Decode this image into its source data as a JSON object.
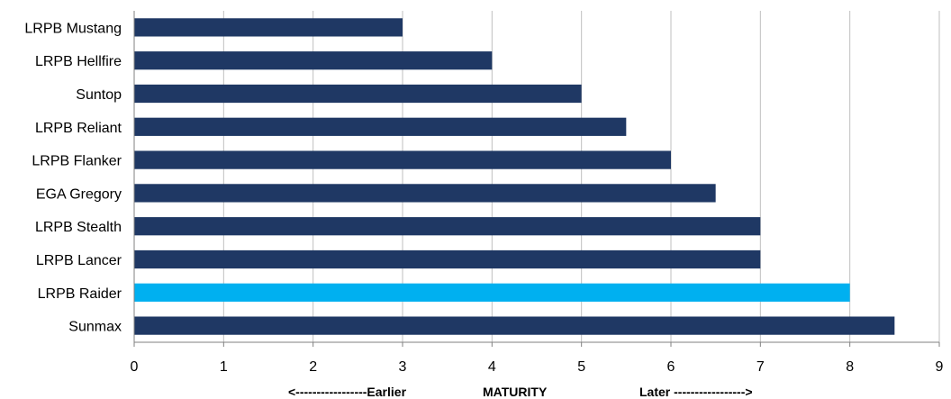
{
  "chart_data": {
    "type": "bar",
    "orientation": "horizontal",
    "categories": [
      "LRPB Mustang",
      "LRPB Hellfire",
      "Suntop",
      "LRPB Reliant",
      "LRPB Flanker",
      "EGA Gregory",
      "LRPB Stealth",
      "LRPB Lancer",
      "LRPB Raider",
      "Sunmax"
    ],
    "values": [
      3,
      4,
      5,
      5.5,
      6,
      6.5,
      7,
      7,
      8,
      8.5
    ],
    "highlight_category": "LRPB Raider",
    "colors": {
      "bar": "#1f3864",
      "highlight": "#00b0f0",
      "grid": "#bfbfbf",
      "axis": "#808080"
    },
    "xlim": [
      0,
      9
    ],
    "xticks": [
      "0",
      "1",
      "2",
      "3",
      "4",
      "5",
      "6",
      "7",
      "8",
      "9"
    ],
    "grid": "vertical",
    "legend": "none",
    "axis_note": {
      "earlier": "<-----------------Earlier",
      "center": "MATURITY",
      "later": "Later ----------------->"
    }
  }
}
